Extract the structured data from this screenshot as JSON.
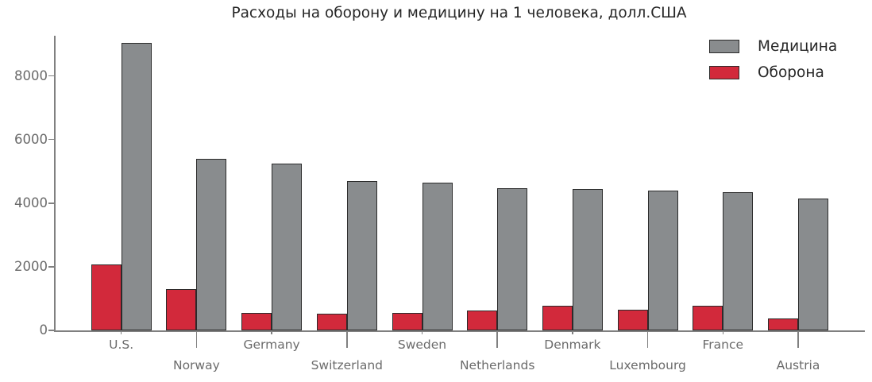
{
  "chart_data": {
    "type": "bar",
    "title": "Расходы на оборону и медицину на 1 человека, долл.США",
    "categories": [
      "U.S.",
      "Norway",
      "Germany",
      "Switzerland",
      "Sweden",
      "Netherlands",
      "Denmark",
      "Luxembourg",
      "France",
      "Austria"
    ],
    "series": [
      {
        "name": "Оборона",
        "color": "#d2293b",
        "values": [
          2060,
          1300,
          540,
          520,
          550,
          630,
          770,
          640,
          770,
          370
        ]
      },
      {
        "name": "Медицина",
        "color": "#898c8e",
        "values": [
          9050,
          5400,
          5250,
          4700,
          4650,
          4470,
          4450,
          4400,
          4350,
          4150
        ]
      }
    ],
    "legend": [
      {
        "label": "Медицина",
        "color": "#898c8e"
      },
      {
        "label": "Оборона",
        "color": "#d2293b"
      }
    ],
    "legend_position": "upper right",
    "xlabel": "",
    "ylabel": "",
    "yticks": [
      0,
      2000,
      4000,
      6000,
      8000
    ],
    "ylim": [
      0,
      9250
    ],
    "grid": false,
    "bar_edge_color": "#2b2b2b",
    "axis_color": "#808080",
    "tick_label_color": "#6b6b6b",
    "title_color": "#262626"
  }
}
